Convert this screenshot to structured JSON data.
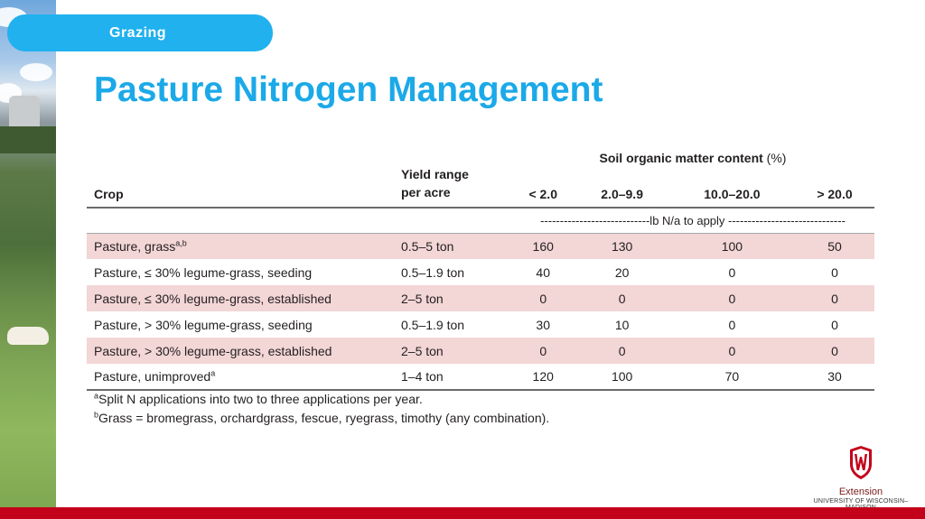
{
  "header": {
    "section_label": "Grazing",
    "title": "Pasture Nitrogen Management"
  },
  "table": {
    "group_header": "Soil organic matter content",
    "group_unit": "(%)",
    "columns": {
      "crop": "Crop",
      "yield_line1": "Yield range",
      "yield_line2": "per acre",
      "som1": "< 2.0",
      "som2": "2.0–9.9",
      "som3": "10.0–20.0",
      "som4": "> 20.0"
    },
    "unit_row": "----------------------------lb N/a to apply ------------------------------",
    "rows": [
      {
        "crop": "Pasture, grass",
        "sup": "a,b",
        "yield": "0.5–5 ton",
        "values": [
          "160",
          "130",
          "100",
          "50"
        ]
      },
      {
        "crop": "Pasture, ≤ 30% legume-grass, seeding",
        "sup": "",
        "yield": "0.5–1.9 ton",
        "values": [
          "40",
          "20",
          "0",
          "0"
        ]
      },
      {
        "crop": "Pasture, ≤ 30% legume-grass, established",
        "sup": "",
        "yield": "2–5 ton",
        "values": [
          "0",
          "0",
          "0",
          "0"
        ]
      },
      {
        "crop": "Pasture, > 30% legume-grass, seeding",
        "sup": "",
        "yield": "0.5–1.9 ton",
        "values": [
          "30",
          "10",
          "0",
          "0"
        ]
      },
      {
        "crop": "Pasture, > 30% legume-grass, established",
        "sup": "",
        "yield": "2–5 ton",
        "values": [
          "0",
          "0",
          "0",
          "0"
        ]
      },
      {
        "crop": "Pasture, unimproved",
        "sup": "a",
        "yield": "1–4 ton",
        "values": [
          "120",
          "100",
          "70",
          "30"
        ]
      }
    ]
  },
  "footnotes": [
    {
      "mark": "a",
      "text": "Split N applications into two to three applications per year."
    },
    {
      "mark": "b",
      "text": "Grass = bromegrass, orchardgrass, fescue, ryegrass, timothy (any combination)."
    }
  ],
  "logo": {
    "name": "Extension",
    "university": "UNIVERSITY OF WISCONSIN–MADISON"
  },
  "colors": {
    "accent": "#1ba9e8",
    "pill": "#20b1ee",
    "row_shade": "#f3d6d6",
    "bottom_bar": "#c4011a"
  }
}
